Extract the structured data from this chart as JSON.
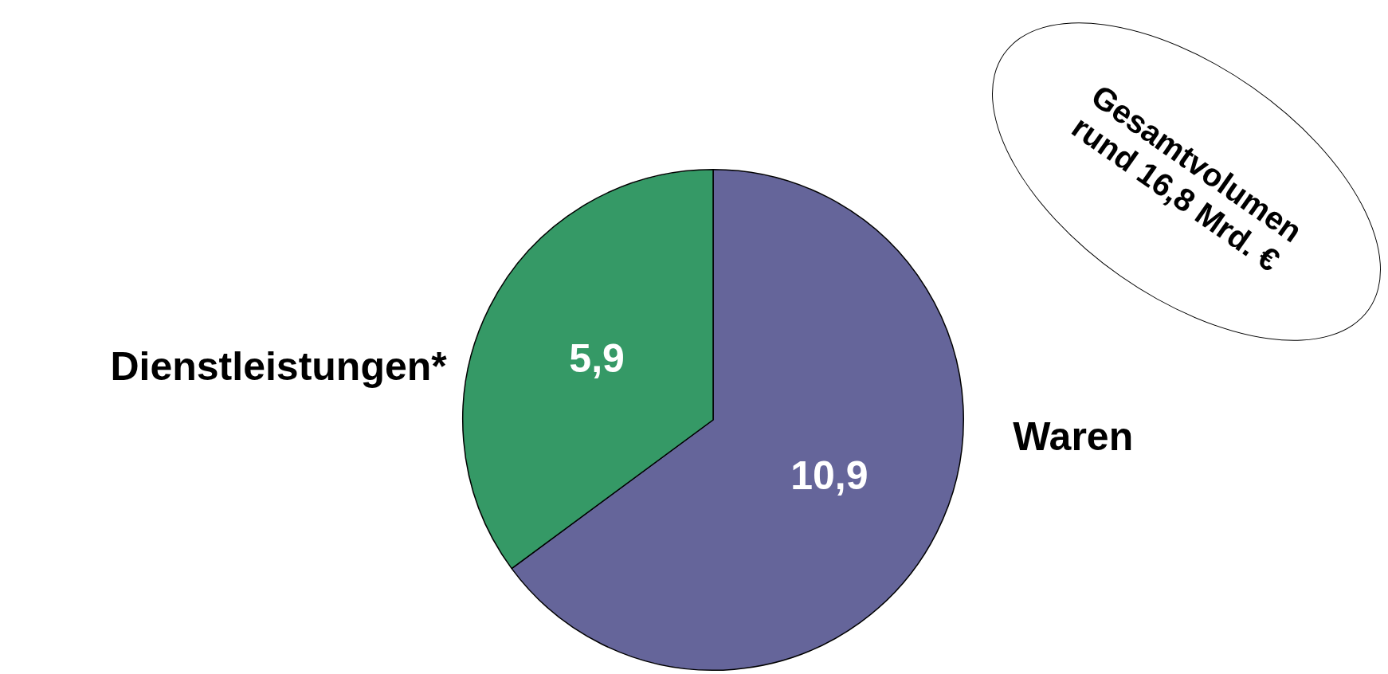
{
  "chart_data": {
    "type": "pie",
    "categories": [
      "Waren",
      "Dienstleistungen*"
    ],
    "values": [
      10.9,
      5.9
    ],
    "colors": [
      "#65659a",
      "#359966"
    ],
    "value_labels": [
      "10,9",
      "5,9"
    ],
    "annotations": [
      "Gesamtvolumen rund 16,8 Mrd. €"
    ],
    "legend": false
  }
}
